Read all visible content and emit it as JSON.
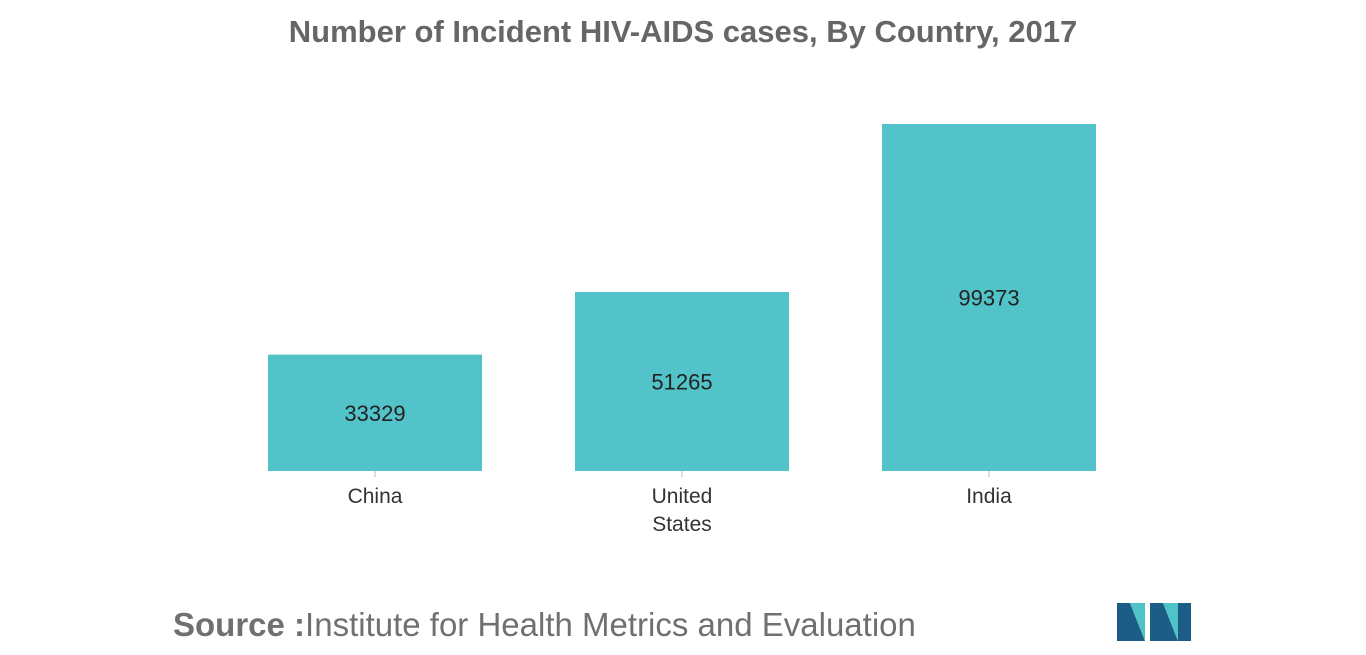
{
  "title": "Number of Incident HIV-AIDS cases, By Country, 2017",
  "source": {
    "label": "Source :",
    "text": "Institute for Health Metrics and Evaluation"
  },
  "colors": {
    "bar": "#52c4c9",
    "logo_dark": "#1b5d86",
    "logo_light": "#4fc3c8"
  },
  "chart_data": {
    "type": "bar",
    "categories": [
      [
        "China"
      ],
      [
        "United",
        "States"
      ],
      [
        "India"
      ]
    ],
    "values": [
      33329,
      51265,
      99373
    ],
    "title": "Number of Incident HIV-AIDS cases, By Country, 2017",
    "xlabel": "",
    "ylabel": "",
    "ylim": [
      0,
      100000
    ],
    "grid": false,
    "legend": "none",
    "data_labels": true
  }
}
